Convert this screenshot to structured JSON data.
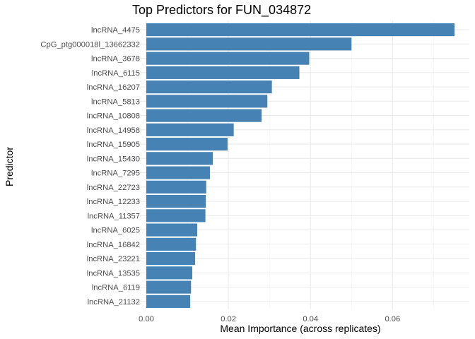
{
  "chart_data": {
    "type": "bar",
    "orientation": "horizontal",
    "title": "Top Predictors for FUN_034872",
    "xlabel": "Mean Importance (across replicates)",
    "ylabel": "Predictor",
    "xlim": [
      -0.00058,
      0.0751
    ],
    "x_ticks": [
      0.0,
      0.02,
      0.04,
      0.06
    ],
    "x_tick_labels": [
      "0.00",
      "0.02",
      "0.04",
      "0.06"
    ],
    "grid": true,
    "bar_color": "#4682B4",
    "categories": [
      "lncRNA_4475",
      "CpG_ptg000018l_13662332",
      "lncRNA_3678",
      "lncRNA_6115",
      "lncRNA_16207",
      "lncRNA_5813",
      "lncRNA_10808",
      "lncRNA_14958",
      "lncRNA_15905",
      "lncRNA_15430",
      "lncRNA_7295",
      "lncRNA_22723",
      "lncRNA_12233",
      "lncRNA_11357",
      "lncRNA_6025",
      "lncRNA_16842",
      "lncRNA_23221",
      "lncRNA_13535",
      "lncRNA_6119",
      "lncRNA_21132"
    ],
    "values": [
      0.0751,
      0.05,
      0.0397,
      0.0373,
      0.0306,
      0.0295,
      0.0281,
      0.0213,
      0.0198,
      0.0162,
      0.0155,
      0.0146,
      0.0145,
      0.0144,
      0.0124,
      0.0121,
      0.0119,
      0.0112,
      0.0109,
      0.0107
    ]
  }
}
